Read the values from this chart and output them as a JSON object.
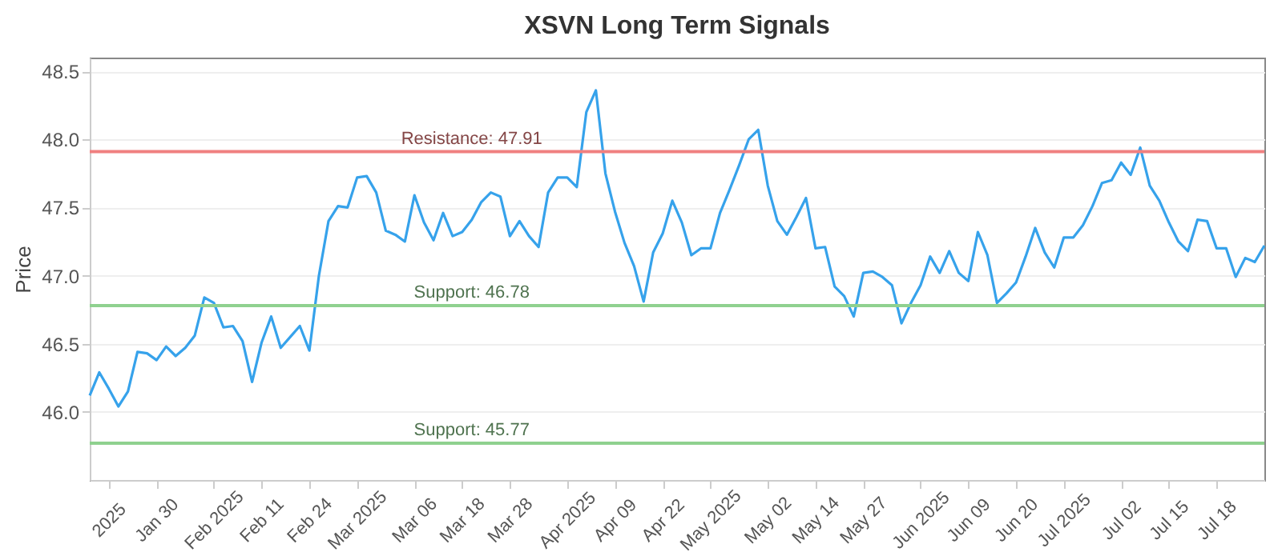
{
  "chart_data": {
    "type": "line",
    "title": "XSVN Long Term Signals",
    "ylabel": "Price",
    "categories": [
      null,
      null,
      "2025",
      null,
      null,
      null,
      null,
      "Jan 30",
      null,
      null,
      null,
      null,
      null,
      "Feb 2025",
      null,
      null,
      null,
      null,
      "Feb 11",
      null,
      null,
      null,
      null,
      "Feb 24",
      null,
      null,
      null,
      null,
      "Mar 2025",
      null,
      null,
      null,
      null,
      null,
      "Mar 06",
      null,
      null,
      null,
      null,
      "Mar 18",
      null,
      null,
      null,
      null,
      "Mar 28",
      null,
      null,
      null,
      null,
      null,
      "Apr 2025",
      null,
      null,
      null,
      null,
      "Apr 09",
      null,
      null,
      null,
      null,
      "Apr 22",
      null,
      null,
      null,
      null,
      "May 2025",
      null,
      null,
      null,
      null,
      null,
      "May 02",
      null,
      null,
      null,
      null,
      "May 14",
      null,
      null,
      null,
      null,
      "May 27",
      null,
      null,
      null,
      null,
      null,
      "Jun 2025",
      null,
      null,
      null,
      null,
      "Jun 09",
      null,
      null,
      null,
      null,
      "Jun 20",
      null,
      null,
      null,
      null,
      "Jul 2025",
      null,
      null,
      null,
      null,
      null,
      "Jul 02",
      null,
      null,
      null,
      null,
      "Jul 15",
      null,
      null,
      null,
      null,
      "Jul 18",
      null,
      null,
      null,
      null,
      null
    ],
    "series": [
      {
        "color": "#36a2eb",
        "values": [
          46.12,
          46.29,
          46.17,
          46.04,
          46.15,
          46.44,
          46.43,
          46.38,
          46.48,
          46.41,
          46.47,
          46.56,
          46.84,
          46.8,
          46.62,
          46.63,
          46.52,
          46.22,
          46.51,
          46.7,
          46.47,
          46.55,
          46.63,
          46.45,
          47.0,
          47.4,
          47.51,
          47.5,
          47.72,
          47.73,
          47.61,
          47.33,
          47.3,
          47.25,
          47.59,
          47.39,
          47.26,
          47.46,
          47.29,
          47.32,
          47.41,
          47.54,
          47.61,
          47.58,
          47.29,
          47.4,
          47.29,
          47.21,
          47.61,
          47.72,
          47.72,
          47.65,
          48.2,
          48.36,
          47.75,
          47.47,
          47.24,
          47.07,
          46.81,
          47.17,
          47.31,
          47.55,
          47.39,
          47.15,
          47.2,
          47.2,
          47.46,
          47.63,
          47.81,
          48.0,
          48.07,
          47.66,
          47.4,
          47.3,
          47.43,
          47.57,
          47.2,
          47.21,
          46.92,
          46.85,
          46.7,
          47.02,
          47.03,
          46.99,
          46.93,
          46.65,
          46.8,
          46.93,
          47.14,
          47.02,
          47.18,
          47.02,
          46.96,
          47.32,
          47.15,
          46.8,
          46.87,
          46.95,
          47.14,
          47.35,
          47.17,
          47.06,
          47.28,
          47.28,
          47.37,
          47.51,
          47.68,
          47.7,
          47.83,
          47.74,
          47.94,
          47.66,
          47.55,
          47.39,
          47.25,
          47.18,
          47.41,
          47.4,
          47.2,
          47.2,
          46.99,
          47.13,
          47.1,
          47.22
        ]
      }
    ],
    "ylim": [
      45.5,
      48.6
    ],
    "yticks": [
      {
        "value": 46,
        "label": "46.0"
      },
      {
        "value": 46.5,
        "label": "46.5"
      },
      {
        "value": 47,
        "label": "47.0"
      },
      {
        "value": 47.5,
        "label": "47.5"
      },
      {
        "value": 48,
        "label": "48.0"
      },
      {
        "value": 48.5,
        "label": "48.5"
      }
    ],
    "grid": "y",
    "ref_lines": [
      {
        "axis": "y",
        "value": 47.91,
        "label": "Resistance: 47.91",
        "color": "#f08080"
      },
      {
        "axis": "y",
        "value": 46.78,
        "label": "Support: 46.78",
        "color": "#8fd18f"
      },
      {
        "axis": "y",
        "value": 45.77,
        "label": "Support: 45.77",
        "color": "#8fd18f"
      }
    ]
  }
}
